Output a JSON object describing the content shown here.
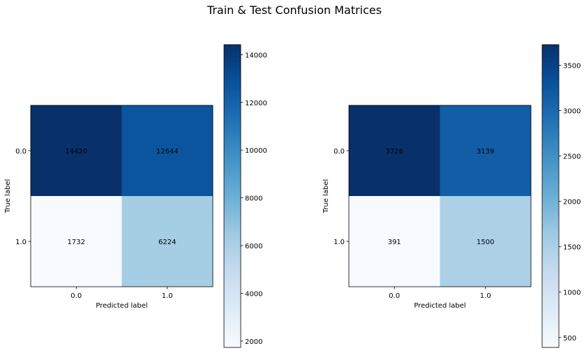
{
  "figure": {
    "title": "Train & Test Confusion Matrices"
  },
  "chart_data": [
    {
      "type": "heatmap",
      "title": "",
      "xlabel": "Predicted label",
      "ylabel": "True label",
      "x_categories": [
        "0.0",
        "1.0"
      ],
      "y_categories": [
        "0.0",
        "1.0"
      ],
      "values": [
        [
          14420,
          12644
        ],
        [
          1732,
          6224
        ]
      ],
      "colormap": "Blues",
      "colorbar": {
        "min": 1732,
        "max": 14420,
        "ticks": [
          "2000",
          "4000",
          "6000",
          "8000",
          "10000",
          "12000",
          "14000"
        ]
      }
    },
    {
      "type": "heatmap",
      "title": "",
      "xlabel": "Predicted label",
      "ylabel": "True label",
      "x_categories": [
        "0.0",
        "1.0"
      ],
      "y_categories": [
        "0.0",
        "1.0"
      ],
      "values": [
        [
          3726,
          3139
        ],
        [
          391,
          1500
        ]
      ],
      "colormap": "Blues",
      "colorbar": {
        "min": 391,
        "max": 3726,
        "ticks": [
          "500",
          "1000",
          "1500",
          "2000",
          "2500",
          "3000",
          "3500"
        ]
      }
    }
  ]
}
